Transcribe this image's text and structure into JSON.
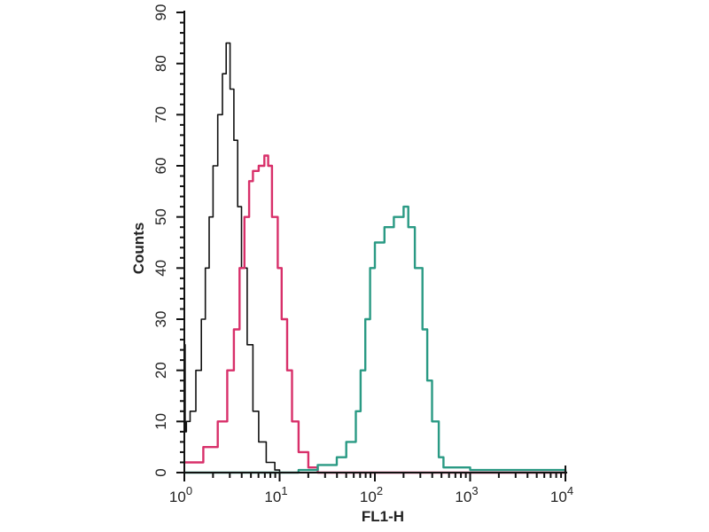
{
  "chart_data": {
    "type": "line",
    "title": "",
    "xlabel": "FL1-H",
    "ylabel": "Counts",
    "xscale": "log",
    "xlim": [
      1,
      10000
    ],
    "ylim": [
      0,
      90
    ],
    "grid": false,
    "x_ticks": [
      {
        "value": 1,
        "base": "10",
        "exp": "0"
      },
      {
        "value": 10,
        "base": "10",
        "exp": "1"
      },
      {
        "value": 100,
        "base": "10",
        "exp": "2"
      },
      {
        "value": 1000,
        "base": "10",
        "exp": "3"
      },
      {
        "value": 10000,
        "base": "10",
        "exp": "4"
      }
    ],
    "y_ticks": [
      "0",
      "10",
      "20",
      "30",
      "40",
      "50",
      "60",
      "70",
      "80",
      "90"
    ],
    "series": [
      {
        "color": "#111111",
        "x": [
          1,
          1.02,
          1.05,
          1.15,
          1.32,
          1.51,
          1.66,
          1.82,
          2.0,
          2.24,
          2.51,
          2.75,
          3.02,
          3.31,
          3.63,
          3.98,
          4.57,
          5.25,
          6.03,
          7.24,
          8.91,
          10
        ],
        "y": [
          25,
          8,
          10,
          12,
          20,
          30,
          40,
          50,
          60,
          70,
          78,
          84,
          75,
          65,
          52,
          40,
          25,
          12,
          6,
          2,
          0.5,
          0
        ]
      },
      {
        "color": "#d8306a",
        "x": [
          1,
          1.26,
          1.58,
          2.24,
          2.82,
          3.31,
          3.8,
          4.27,
          4.79,
          5.25,
          6.03,
          6.92,
          7.59,
          8.32,
          9.55,
          10.5,
          12.0,
          13.5,
          15.8,
          20,
          25.1,
          10000
        ],
        "y": [
          2,
          2,
          5,
          10,
          20,
          28,
          40,
          50,
          57,
          59,
          60,
          62,
          60,
          50,
          40,
          30,
          20,
          10,
          4,
          1,
          0,
          0
        ],
        "note_free": true
      },
      {
        "color": "#2a9a84",
        "x": [
          1,
          10,
          15.8,
          25.1,
          39.8,
          50.1,
          63.1,
          70.8,
          79.4,
          89.1,
          100,
          126,
          158,
          200,
          224,
          263,
          316,
          355,
          398,
          468,
          525,
          1000,
          1585,
          10000
        ],
        "y": [
          0,
          0,
          0.5,
          1.5,
          3,
          6,
          12,
          20,
          30,
          40,
          45,
          48,
          50,
          52,
          48,
          40,
          28,
          18,
          10,
          3,
          1,
          0.5,
          0.5,
          0
        ]
      }
    ]
  }
}
